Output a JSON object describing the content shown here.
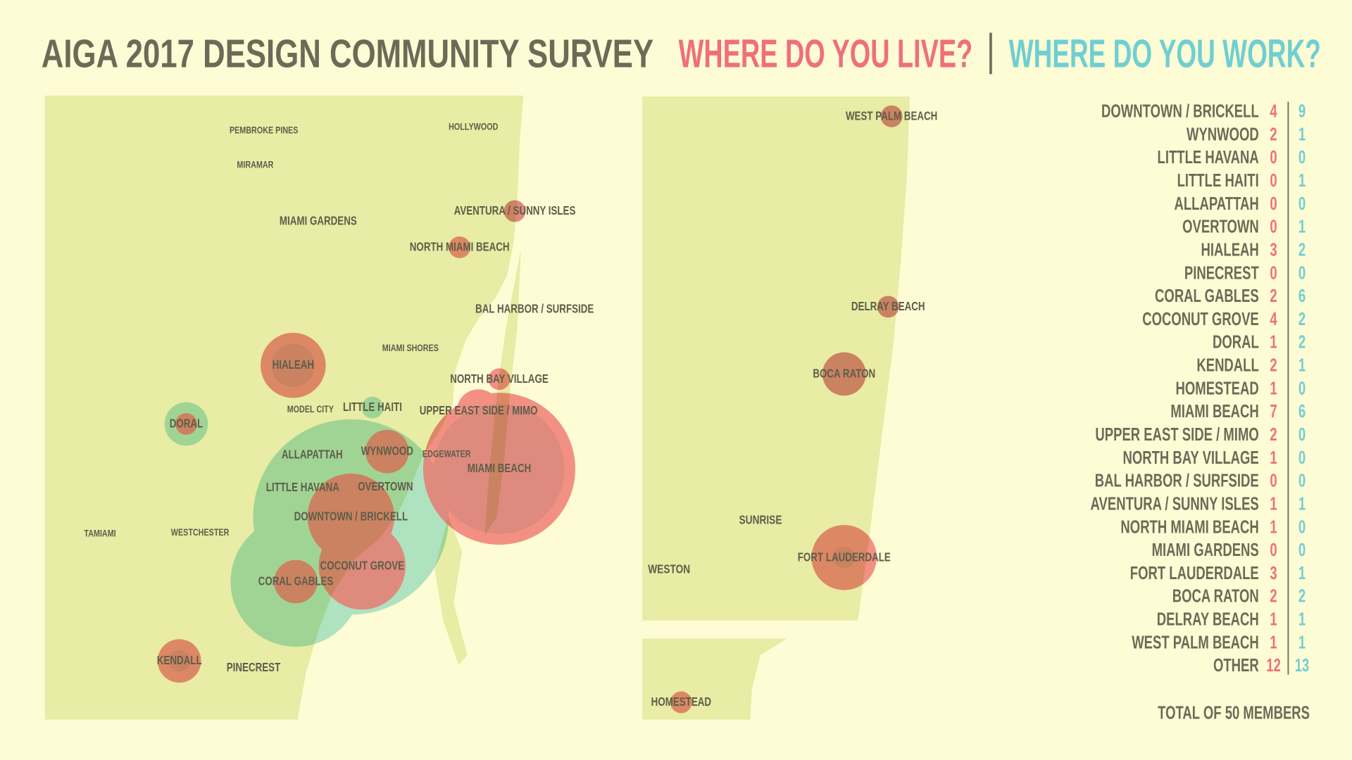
{
  "title": "AIGA 2017 DESIGN COMMUNITY SURVEY",
  "question_live": "WHERE DO YOU LIVE?",
  "question_work": "WHERE DO YOU WORK?",
  "live_color": "#ef6f7c",
  "work_color": "#6fcfd2",
  "rows": [
    {
      "name": "DOWNTOWN / BRICKELL",
      "live": 4,
      "work": 9
    },
    {
      "name": "WYNWOOD",
      "live": 2,
      "work": 1
    },
    {
      "name": "LITTLE HAVANA",
      "live": 0,
      "work": 0
    },
    {
      "name": "LITTLE HAITI",
      "live": 0,
      "work": 1
    },
    {
      "name": "ALLAPATTAH",
      "live": 0,
      "work": 0
    },
    {
      "name": "OVERTOWN",
      "live": 0,
      "work": 1
    },
    {
      "name": "HIALEAH",
      "live": 3,
      "work": 2
    },
    {
      "name": "PINECREST",
      "live": 0,
      "work": 0
    },
    {
      "name": "CORAL GABLES",
      "live": 2,
      "work": 6
    },
    {
      "name": "COCONUT GROVE",
      "live": 4,
      "work": 2
    },
    {
      "name": "DORAL",
      "live": 1,
      "work": 2
    },
    {
      "name": "KENDALL",
      "live": 2,
      "work": 1
    },
    {
      "name": "HOMESTEAD",
      "live": 1,
      "work": 0
    },
    {
      "name": "MIAMI BEACH",
      "live": 7,
      "work": 6
    },
    {
      "name": "UPPER EAST SIDE / MIMO",
      "live": 2,
      "work": 0
    },
    {
      "name": "NORTH BAY VILLAGE",
      "live": 1,
      "work": 0
    },
    {
      "name": "BAL HARBOR / SURFSIDE",
      "live": 0,
      "work": 0
    },
    {
      "name": "AVENTURA / SUNNY ISLES",
      "live": 1,
      "work": 1
    },
    {
      "name": "NORTH MIAMI BEACH",
      "live": 1,
      "work": 0
    },
    {
      "name": "MIAMI GARDENS",
      "live": 0,
      "work": 0
    },
    {
      "name": "FORT LAUDERDALE",
      "live": 3,
      "work": 1
    },
    {
      "name": "BOCA RATON",
      "live": 2,
      "work": 2
    },
    {
      "name": "DELRAY BEACH",
      "live": 1,
      "work": 1
    },
    {
      "name": "WEST PALM BEACH",
      "live": 1,
      "work": 1
    },
    {
      "name": "OTHER",
      "live": 12,
      "work": 13
    }
  ],
  "total": "TOTAL OF 50 MEMBERS",
  "places": [
    "PEMBROKE PINES",
    "HOLLYWOOD",
    "MIRAMAR",
    "MIAMI SHORES",
    "MODEL CITY",
    "EDGEWATER",
    "TAMIAMI",
    "WESTCHESTER",
    "SUNRISE",
    "WESTON"
  ]
}
